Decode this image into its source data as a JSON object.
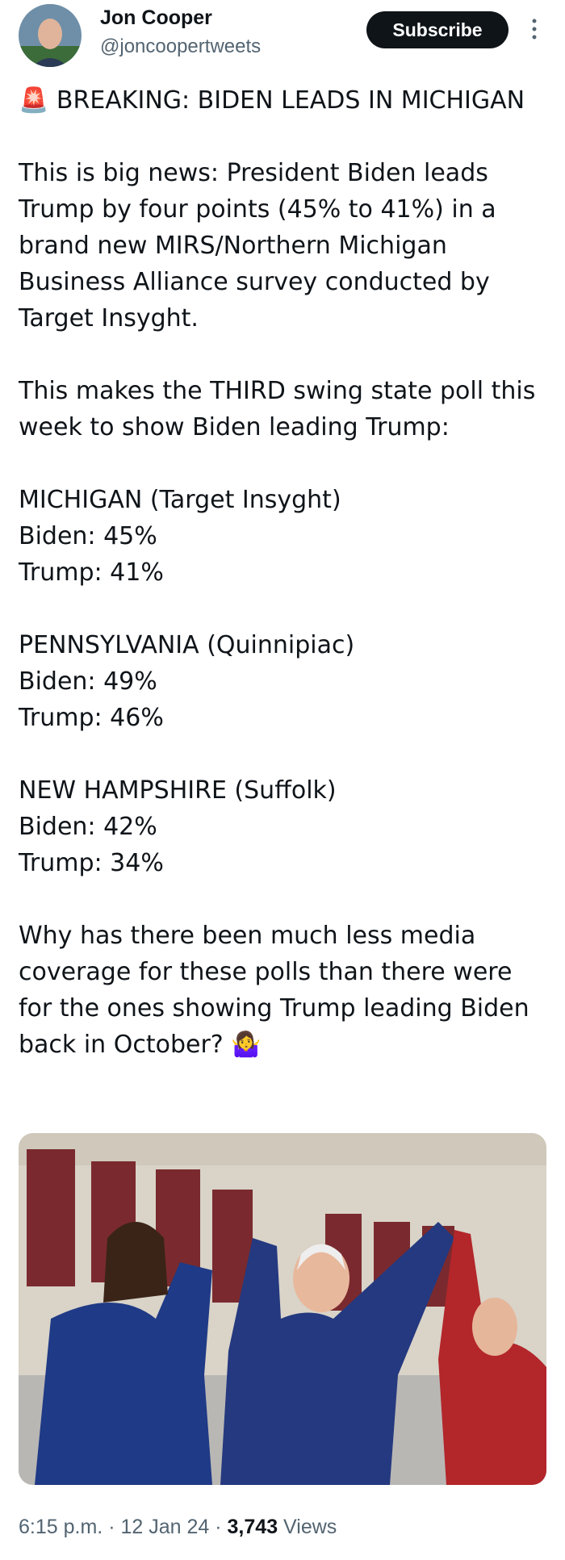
{
  "author": {
    "name": "Jon Cooper",
    "handle": "@joncoopertweets",
    "button": "Subscribe"
  },
  "tweet": {
    "heading": "🚨 BREAKING: BIDEN LEADS IN MICHIGAN",
    "paragraphs": [
      "This is big news: President Biden leads Trump by four points (45% to 41%) in a brand new MIRS/Northern Michigan Business Alliance survey conducted by Target Insyght.",
      "This makes the THIRD swing state poll this week to show Biden leading Trump:"
    ],
    "polls": [
      [
        "MICHIGAN (Target Insyght)",
        "Biden: 45%",
        "Trump: 41%"
      ],
      [
        "PENNSYLVANIA (Quinnipiac)",
        "Biden: 49%",
        "Trump: 46%"
      ],
      [
        "NEW HAMPSHIRE (Suffolk)",
        "Biden: 42%",
        "Trump: 34%"
      ]
    ],
    "closing": "Why has there been much less media coverage for these polls than there were for the ones showing Trump leading Biden back in October? 🤷‍♀️"
  },
  "meta": {
    "time": "6:15 p.m.",
    "separator": "·",
    "date": "12 Jan 24",
    "views": "3,743",
    "views_label": "Views"
  }
}
